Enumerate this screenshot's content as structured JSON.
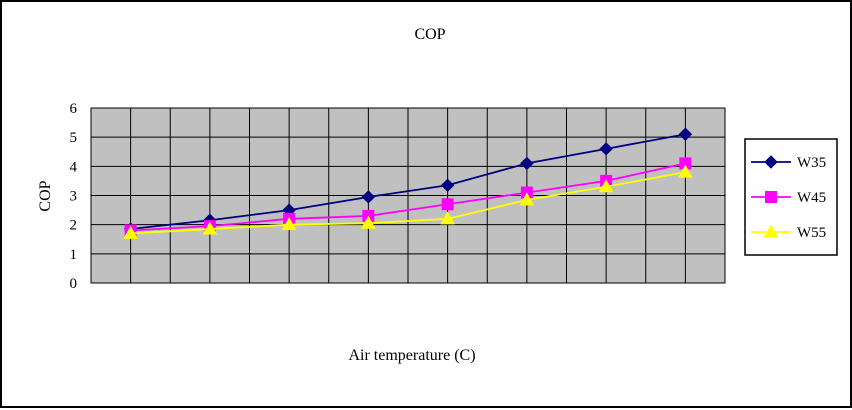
{
  "chart_data": {
    "type": "line",
    "title": "COP",
    "xlabel": "Air temperature (C)",
    "ylabel": "COP",
    "ylim": [
      0,
      6
    ],
    "yticks": [
      0,
      1,
      2,
      3,
      4,
      5,
      6
    ],
    "categories": [
      "",
      "",
      "",
      "",
      "",
      "",
      "",
      ""
    ],
    "grid": true,
    "legend_position": "right",
    "plot_background": "#c0c0c0",
    "series": [
      {
        "name": "W35",
        "color": "#000080",
        "marker": "diamond",
        "values": [
          1.85,
          2.15,
          2.5,
          2.95,
          3.35,
          4.1,
          4.6,
          5.1
        ]
      },
      {
        "name": "W45",
        "color": "#ff00ff",
        "marker": "square",
        "values": [
          1.8,
          1.95,
          2.2,
          2.3,
          2.7,
          3.1,
          3.5,
          4.1
        ]
      },
      {
        "name": "W55",
        "color": "#ffff00",
        "marker": "triangle",
        "values": [
          1.7,
          1.85,
          2.0,
          2.05,
          2.2,
          2.85,
          3.3,
          3.8
        ]
      }
    ]
  }
}
